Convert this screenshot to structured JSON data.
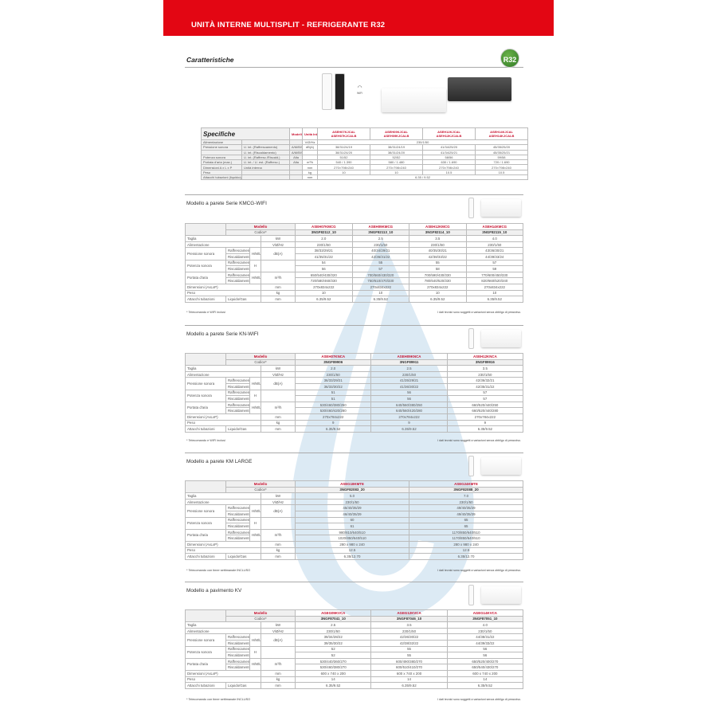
{
  "header": {
    "title": "UNITÀ INTERNE MULTISPLIT - REFRIGERANTE R32",
    "brand_color": "#e30613"
  },
  "features_title": "Caratteristiche",
  "badge": "R32",
  "wifi_label": "WiFi",
  "disclaimer": "I dati tecnici sono soggetti a variazioni senza obbligo di preavviso.",
  "spec": {
    "title": "Specifiche",
    "col_modello": "Modello",
    "col_unit": "Unità Int.",
    "models": [
      [
        "ASEH07KJCAL",
        "ASEH07KJCALB"
      ],
      [
        "ASEH09KJCAL",
        "ASEH09KJCALB"
      ],
      [
        "ASEH12KJCAL",
        "ASEH12KJCALB"
      ],
      [
        "ASEH14KJCAL",
        "ASEH14KJCALB"
      ]
    ],
    "rows": [
      {
        "label": "Alimentazione",
        "sub": "",
        "mode": "",
        "unit": "V/Ø/Hz",
        "span": "230/1/50"
      },
      {
        "label": "Pressione sonora",
        "sub": "U. int. (Raffrescamento)",
        "mode": "A/M/B/S",
        "unit": "dB(A)",
        "values": [
          "38/31/24/19",
          "38/31/24/19",
          "41/34/25/20",
          "45/35/25/20"
        ]
      },
      {
        "label": "",
        "sub": "U. int. (Riscaldamento)",
        "mode": "A/M/B/S",
        "unit": "",
        "values": [
          "38/31/24/20",
          "38/31/24/20",
          "41/34/25/21",
          "45/35/25/21"
        ]
      },
      {
        "label": "Potenza sonora",
        "sub": "U. int. (Raffresc./Riscald.)",
        "mode": "Alta",
        "unit": "",
        "values": [
          "51/52",
          "52/52",
          "58/56",
          "59/58"
        ]
      },
      {
        "label": "Portata d'aria (max.)",
        "sub": "U. int. / U. est. (Raffresc.)",
        "mode": "Alta",
        "unit": "m³/h",
        "values": [
          "540 / 1.390",
          "580 / 1.480",
          "630 / 1.690",
          "720 / 1.690"
        ]
      },
      {
        "label": "Dimensioni A x L x P",
        "sub": "Unità interna",
        "mode": "",
        "unit": "mm",
        "values": [
          "270×798×240",
          "270×798×240",
          "270×798×240",
          "270×798×240"
        ]
      },
      {
        "label": "Peso",
        "sub": "",
        "mode": "",
        "unit": "kg",
        "values": [
          "10",
          "10",
          "10.5",
          "10.5"
        ]
      },
      {
        "label": "Attacchi tubazioni (liquido/gas)",
        "sub": "",
        "mode": "",
        "unit": "mm",
        "span": "6.35 / 9.52"
      }
    ]
  },
  "sections": [
    {
      "title": "Modello a parete Serie KMCG-WIFI",
      "modello_label": "Modello",
      "codice_label": "Codice*",
      "note": "* Telecomando e WIFI inclusi",
      "models": [
        "ASEH07KMCG",
        "ASEH09KMCG",
        "ASEH12KMCG",
        "ASEH14KMCG"
      ],
      "codes": [
        "3NGF82112_10",
        "3NGF82113_10",
        "3NGF82114_10",
        "3NGF82115_10"
      ],
      "rows": [
        {
          "label": "Taglia",
          "unit": "kW",
          "values": [
            "2.0",
            "2.5",
            "3.5",
            "4.0"
          ]
        },
        {
          "label": "Alimentazione",
          "unit": "V/Ø/Hz",
          "values": [
            "230/1/50",
            "230/1/50",
            "230/1/50",
            "230/1/50"
          ]
        },
        {
          "label": "Pressione sonora",
          "mode": "H/M/L/Q",
          "unit": "dB(A)",
          "sub": [
            {
              "label": "Raffrescamento",
              "values": [
                "38/33/29/21",
                "40/34/29/21",
                "40/35/30/21",
                "43/36/30/21"
              ]
            },
            {
              "label": "Riscaldamento",
              "values": [
                "41/35/31/22",
                "42/36/31/22",
                "42/38/33/22",
                "44/39/33/24"
              ]
            }
          ]
        },
        {
          "label": "Potenza sonora",
          "mode": "H",
          "unit": "",
          "sub": [
            {
              "label": "Raffrescamento",
              "values": [
                "54",
                "55",
                "55",
                "57"
              ]
            },
            {
              "label": "Riscaldamento",
              "values": [
                "56",
                "57",
                "58",
                "59"
              ]
            }
          ]
        },
        {
          "label": "Portata d'aria",
          "mode": "H/M/L/Q",
          "unit": "m³/h",
          "sub": [
            {
              "label": "Raffrescamento",
              "values": [
                "650/540/430/320",
                "700/560/430/320",
                "700/590/430/330",
                "770/600/450/330"
              ]
            },
            {
              "label": "Riscaldamento",
              "values": [
                "720/580/460/330",
                "750/610/470/330",
                "780/640/520/330",
                "820/660/520/340"
              ]
            }
          ]
        },
        {
          "label": "Dimensioni (AxLxP)",
          "unit": "mm",
          "values": [
            "270x834x222",
            "270x834x222",
            "270x834x222",
            "270x834x222"
          ]
        },
        {
          "label": "Peso",
          "unit": "kg",
          "values": [
            "10",
            "10",
            "10",
            "10"
          ]
        },
        {
          "label": "Attacchi tubazioni",
          "subtext": "Liquido/Gas",
          "unit": "mm",
          "values": [
            "6.35/9.52",
            "6.35/9.52",
            "6.35/9.52",
            "6.35/9.52"
          ]
        }
      ]
    },
    {
      "title": "Modello a parete Serie KN-WIFI",
      "modello_label": "Modello",
      "codice_label": "Codice*",
      "note": "* Telecomando e WIFI inclusi",
      "models": [
        "ASEH07KNCA",
        "ASEH09KNCA",
        "ASEH12KNCA"
      ],
      "codes": [
        "3NGF89906",
        "3NGF89911",
        "3NGF89916"
      ],
      "rows": [
        {
          "label": "Taglia",
          "unit": "kW",
          "values": [
            "2.0",
            "2.5",
            "3.5"
          ]
        },
        {
          "label": "Alimentazione",
          "unit": "V/Ø/Hz",
          "values": [
            "230/1/50",
            "230/1/50",
            "230/1/50"
          ]
        },
        {
          "label": "Pressione sonora",
          "mode": "H/M/L/Q",
          "unit": "dB(A)",
          "sub": [
            {
              "label": "Raffrescamento",
              "values": [
                "36/33/29/21",
                "41/35/29/21",
                "42/36/32/21"
              ]
            },
            {
              "label": "Riscaldamento",
              "values": [
                "36/33/30/22",
                "41/36/30/22",
                "42/35/31/22"
              ]
            }
          ]
        },
        {
          "label": "Potenza sonora",
          "mode": "H",
          "unit": "",
          "sub": [
            {
              "label": "Raffrescamento",
              "values": [
                "51",
                "56",
                "57"
              ]
            },
            {
              "label": "Riscaldamento",
              "values": [
                "51",
                "56",
                "57"
              ]
            }
          ]
        },
        {
          "label": "Portata d'aria",
          "mode": "H/M/L/Q",
          "unit": "m³/h",
          "sub": [
            {
              "label": "Raffrescamento",
              "values": [
                "530/460/380/250",
                "640/560/380/250",
                "660/520/440/250"
              ]
            },
            {
              "label": "Riscaldamento",
              "values": [
                "530/460/420/280",
                "640/560/420/280",
                "660/520/440/280"
              ]
            }
          ]
        },
        {
          "label": "Dimensioni (AxLxP)",
          "unit": "mm",
          "values": [
            "270x784x222",
            "270x784x222",
            "270x784x222"
          ]
        },
        {
          "label": "Peso",
          "unit": "kg",
          "values": [
            "9",
            "9",
            "9"
          ]
        },
        {
          "label": "Attacchi tubazioni",
          "subtext": "Liquido/Gas",
          "unit": "mm",
          "values": [
            "6.35/9.52",
            "6.35/9.52",
            "6.35/9.52"
          ]
        }
      ]
    },
    {
      "title": "Modello a parete KM LARGE",
      "modello_label": "Modello",
      "codice_label": "Codice*",
      "note": "* Telecomando con timer settimanale INCLUSO",
      "models": [
        "ASEG18KMTE",
        "ASEG24KMTE"
      ],
      "codes": [
        "3NGF82083_20",
        "3NGF82088_20"
      ],
      "rows": [
        {
          "label": "Taglia",
          "unit": "kW",
          "values": [
            "5.0",
            "7.0"
          ]
        },
        {
          "label": "Alimentazione",
          "unit": "V/Ø/Hz",
          "values": [
            "230/1/50",
            "230/1/50"
          ]
        },
        {
          "label": "Pressione sonora",
          "mode": "H/M/L/Q",
          "unit": "dB(A)",
          "sub": [
            {
              "label": "Raffrescamento",
              "values": [
                "45/40/35/29",
                "49/40/35/29"
              ]
            },
            {
              "label": "Riscaldamento",
              "values": [
                "46/40/35/29",
                "49/40/35/29"
              ]
            }
          ]
        },
        {
          "label": "Potenza sonora",
          "mode": "H",
          "unit": "",
          "sub": [
            {
              "label": "Raffrescamento",
              "values": [
                "60",
                "65"
              ]
            },
            {
              "label": "Riscaldamento",
              "values": [
                "61",
                "65"
              ]
            }
          ]
        },
        {
          "label": "Portata d'aria",
          "mode": "H/M/L/Q",
          "unit": "m³/h",
          "sub": [
            {
              "label": "Raffrescamento",
              "values": [
                "980/810/640/510",
                "1170/850/640/510"
              ]
            },
            {
              "label": "Riscaldamento",
              "values": [
                "1020/850/640/510",
                "1170/850/640/510"
              ]
            }
          ]
        },
        {
          "label": "Dimensioni (AxLxP)",
          "unit": "mm",
          "values": [
            "280 x 980 x 240",
            "280 x 980 x 240"
          ]
        },
        {
          "label": "Peso",
          "unit": "kg",
          "values": [
            "12.5",
            "12.5"
          ]
        },
        {
          "label": "Attacchi tubazioni",
          "subtext": "Liquido/Gas",
          "unit": "mm",
          "values": [
            "6.35/12.70",
            "6.35/12.70"
          ]
        }
      ]
    },
    {
      "title": "Modello a pavimento KV",
      "modello_label": "Modello",
      "codice_label": "Codice*",
      "note": "* Telecomando con timer settimanale INCLUSO",
      "models": [
        "AGEG09KVCA",
        "AGEG12KVCA",
        "AGEG14KVCA"
      ],
      "codes": [
        "3NGF87041_10",
        "3NGF87046_10",
        "3NGF87051_10"
      ],
      "rows": [
        {
          "label": "Taglia",
          "unit": "kW",
          "values": [
            "2.5",
            "3.5",
            "4.0"
          ]
        },
        {
          "label": "Alimentazione",
          "unit": "V/Ø/Hz",
          "values": [
            "230/1/50",
            "230/1/50",
            "230/1/50"
          ]
        },
        {
          "label": "Pressione sonora",
          "mode": "H/M/L/Q",
          "unit": "dB(A)",
          "sub": [
            {
              "label": "Raffrescamento",
              "values": [
                "39/34/28/22",
                "42/36/30/22",
                "44/38/31/22"
              ]
            },
            {
              "label": "Riscaldamento",
              "values": [
                "39/35/30/22",
                "42/38/32/22",
                "44/39/33/22"
              ]
            }
          ]
        },
        {
          "label": "Potenza sonora",
          "mode": "H",
          "unit": "",
          "sub": [
            {
              "label": "Raffrescamento",
              "values": [
                "52",
                "55",
                "56"
              ]
            },
            {
              "label": "Riscaldamento",
              "values": [
                "52",
                "55",
                "56"
              ]
            }
          ]
        },
        {
          "label": "Portata d'aria",
          "mode": "H/M/L/Q",
          "unit": "m³/h",
          "sub": [
            {
              "label": "Raffrescamento",
              "values": [
                "530/440/360/270",
                "600/490/380/270",
                "650/520/400/270"
              ]
            },
            {
              "label": "Riscaldamento",
              "values": [
                "530/460/380/270",
                "600/510/410/270",
                "650/540/430/270"
              ]
            }
          ]
        },
        {
          "label": "Dimensioni (AxLxP)",
          "unit": "mm",
          "values": [
            "600 x 740 x 200",
            "600 x 740 x 200",
            "600 x 740 x 200"
          ]
        },
        {
          "label": "Peso",
          "unit": "kg",
          "values": [
            "14",
            "14",
            "14"
          ]
        },
        {
          "label": "Attacchi tubazioni",
          "subtext": "Liquido/Gas",
          "unit": "mm",
          "values": [
            "6.35/9.52",
            "6.35/9.52",
            "6.35/9.52"
          ]
        }
      ]
    }
  ]
}
